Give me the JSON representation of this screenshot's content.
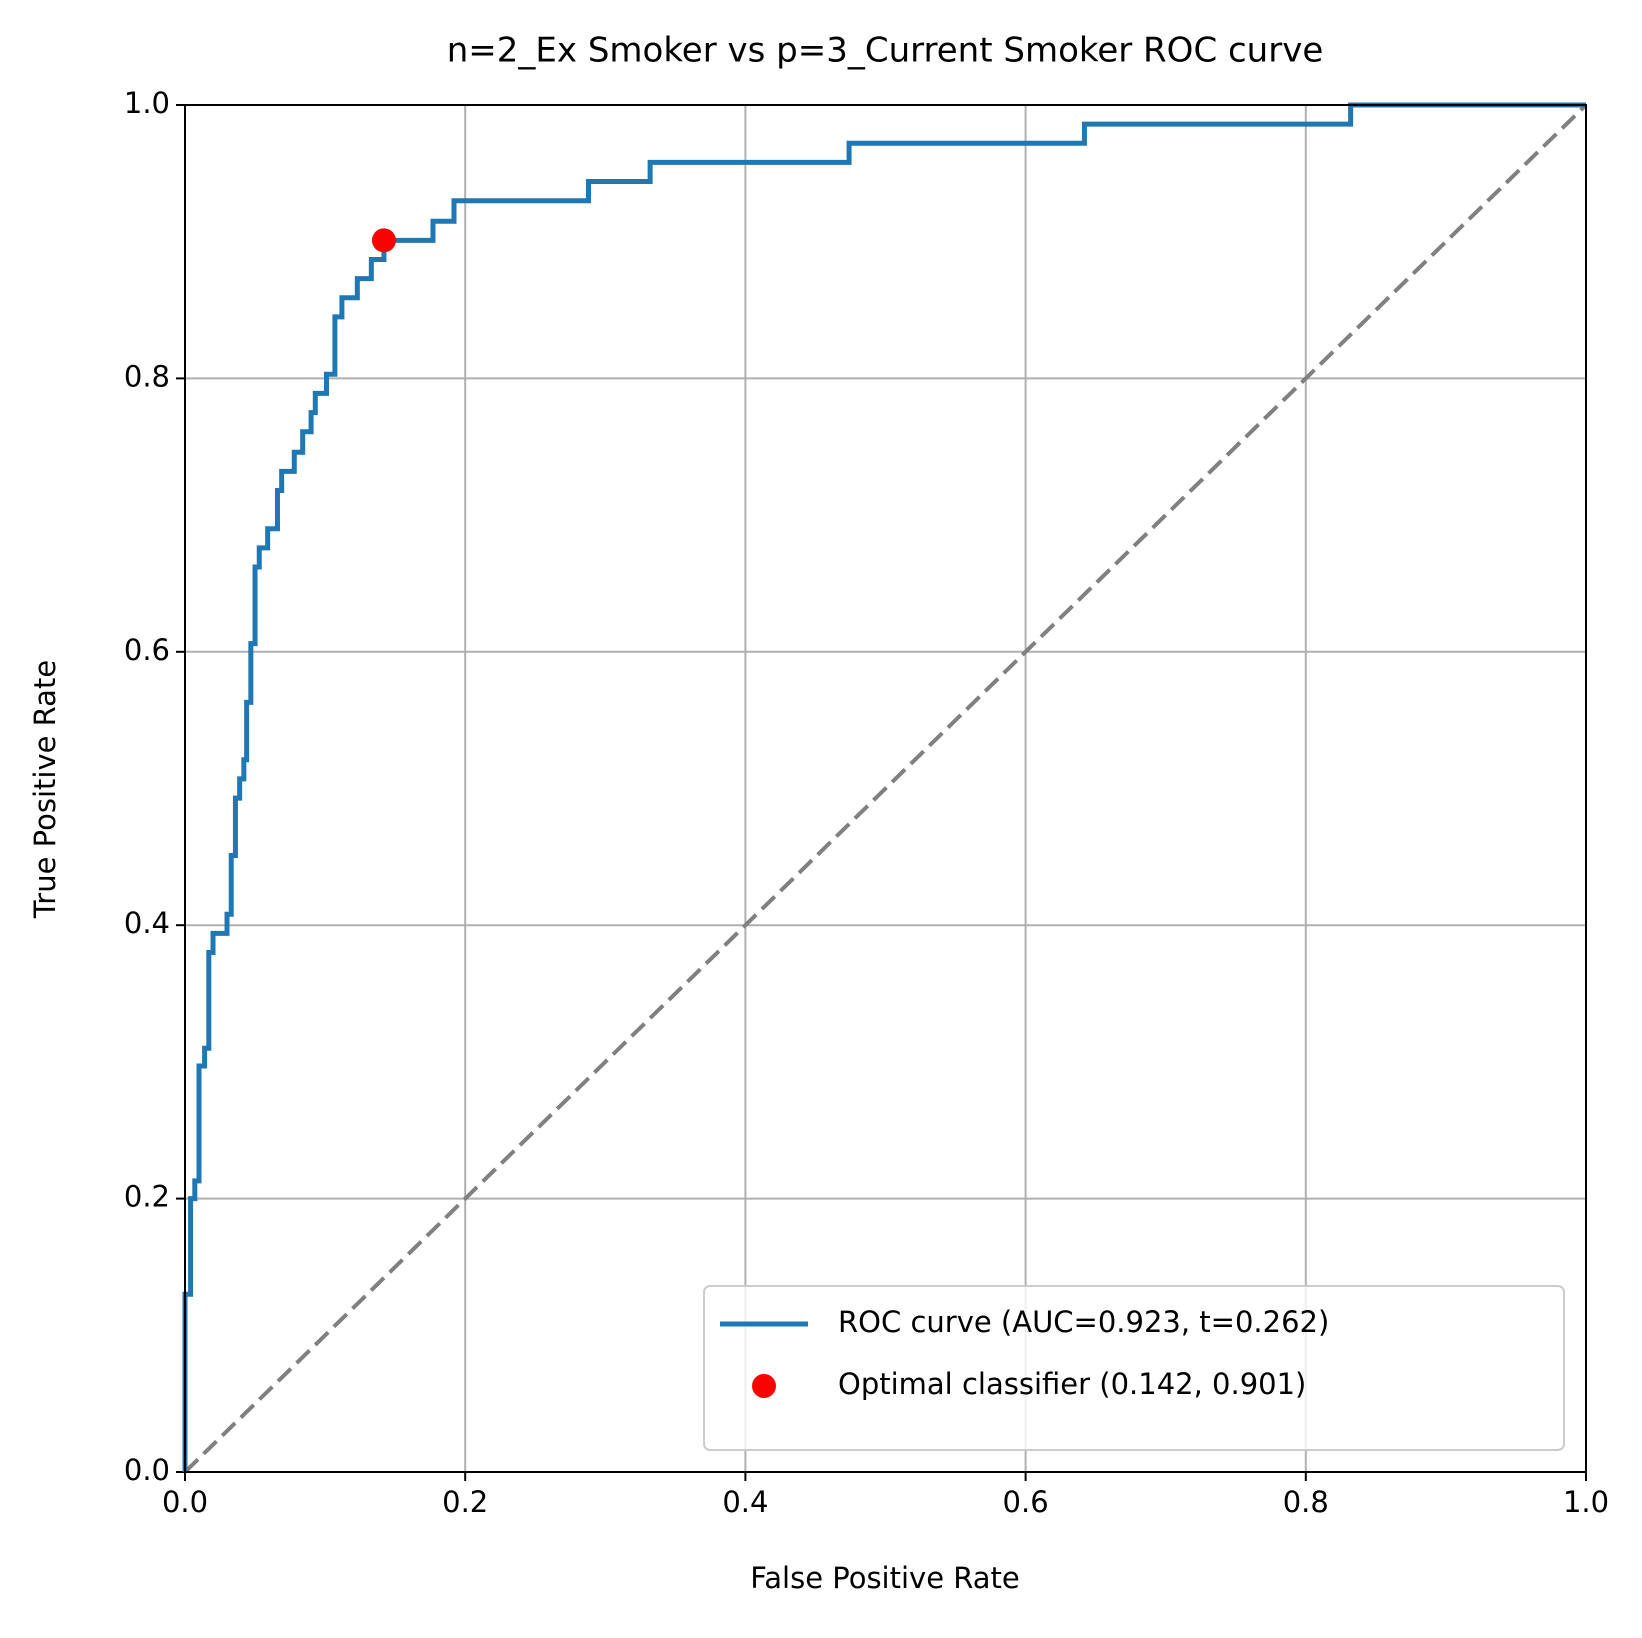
{
  "chart_data": {
    "type": "line",
    "title": "n=2_Ex Smoker vs p=3_Current Smoker ROC curve",
    "xlabel": "False Positive Rate",
    "ylabel": "True Positive Rate",
    "xlim": [
      0,
      1
    ],
    "ylim": [
      0,
      1
    ],
    "xticks": [
      {
        "value": 0,
        "label": "0.0"
      },
      0.2,
      0.4,
      0.6,
      0.8,
      {
        "value": 1,
        "label": "1.0"
      }
    ],
    "yticks": [
      {
        "value": 0,
        "label": "0.0"
      },
      0.2,
      0.4,
      0.6,
      0.8,
      {
        "value": 1,
        "label": "1.0"
      }
    ],
    "grid": true,
    "legend": "lower right",
    "series": [
      {
        "name": "ROC curve (AUC=0.923, t=0.262)",
        "color": "#1f77b4",
        "linestyle": "solid",
        "x": [
          0,
          0,
          0.004,
          0.004,
          0.007,
          0.007,
          0.01,
          0.01,
          0.014,
          0.014,
          0.017,
          0.017,
          0.02,
          0.02,
          0.03,
          0.03,
          0.033,
          0.033,
          0.036,
          0.036,
          0.039,
          0.039,
          0.042,
          0.042,
          0.044,
          0.044,
          0.047,
          0.047,
          0.05,
          0.05,
          0.053,
          0.053,
          0.059,
          0.059,
          0.066,
          0.066,
          0.069,
          0.069,
          0.078,
          0.078,
          0.084,
          0.084,
          0.09,
          0.09,
          0.093,
          0.093,
          0.101,
          0.101,
          0.107,
          0.107,
          0.112,
          0.112,
          0.123,
          0.123,
          0.133,
          0.133,
          0.142,
          0.142,
          0.177,
          0.177,
          0.192,
          0.192,
          0.288,
          0.288,
          0.332,
          0.332,
          0.474,
          0.474,
          0.642,
          0.642,
          0.832,
          0.832,
          1
        ],
        "values": [
          0,
          0.13,
          0.13,
          0.2,
          0.2,
          0.213,
          0.213,
          0.297,
          0.297,
          0.31,
          0.31,
          0.38,
          0.38,
          0.394,
          0.394,
          0.408,
          0.408,
          0.451,
          0.451,
          0.493,
          0.493,
          0.507,
          0.507,
          0.521,
          0.521,
          0.563,
          0.563,
          0.606,
          0.606,
          0.662,
          0.662,
          0.676,
          0.676,
          0.69,
          0.69,
          0.718,
          0.718,
          0.732,
          0.732,
          0.746,
          0.746,
          0.761,
          0.761,
          0.775,
          0.775,
          0.789,
          0.789,
          0.803,
          0.803,
          0.845,
          0.845,
          0.859,
          0.859,
          0.873,
          0.873,
          0.887,
          0.887,
          0.901,
          0.901,
          0.915,
          0.915,
          0.93,
          0.93,
          0.944,
          0.944,
          0.958,
          0.958,
          0.972,
          0.972,
          0.986,
          0.986,
          1,
          1
        ]
      },
      {
        "color": "#808080",
        "linestyle": "dashed",
        "x": [
          0,
          1
        ],
        "values": [
          0,
          1
        ]
      },
      {
        "name": "Optimal classifier (0.142, 0.901)",
        "color": "#ff0000",
        "linestyle": "none",
        "marker": "o",
        "x": [
          0.142
        ],
        "values": [
          0.901
        ]
      }
    ]
  }
}
